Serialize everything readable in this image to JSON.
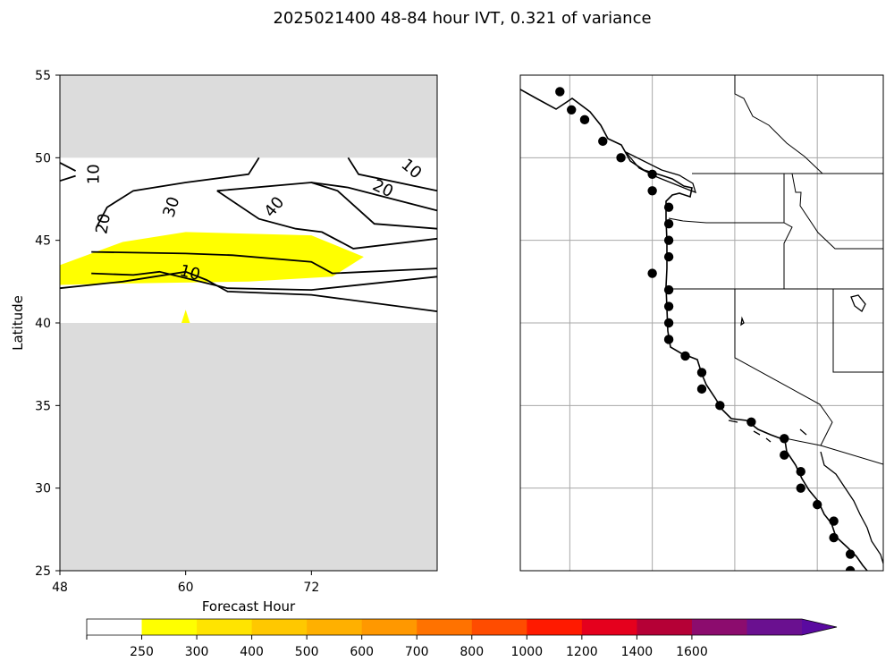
{
  "title": "2025021400 48-84 hour IVT, 0.321 of variance",
  "chart_data": [
    {
      "type": "contour",
      "xlabel": "Forecast Hour",
      "ylabel": "Latitude",
      "xlim": [
        48,
        84
      ],
      "ylim": [
        25,
        55
      ],
      "xticks": [
        "48",
        "60",
        "72"
      ],
      "yticks": [
        "25",
        "30",
        "35",
        "40",
        "45",
        "50",
        "55"
      ],
      "masked_regions": [
        {
          "lat_from": 50,
          "lat_to": 55
        },
        {
          "lat_from": 25,
          "lat_to": 40
        }
      ],
      "filled_region_250": [
        [
          54,
          44.9
        ],
        [
          60,
          45.5
        ],
        [
          72,
          45.3
        ],
        [
          77,
          44.0
        ],
        [
          74,
          42.8
        ],
        [
          66,
          42.5
        ],
        [
          55,
          42.4
        ],
        [
          48,
          42.3
        ],
        [
          48,
          43.5
        ]
      ],
      "filled_spike_250": [
        [
          59.6,
          40.0
        ],
        [
          60.0,
          40.8
        ],
        [
          60.4,
          40.0
        ]
      ],
      "contours": [
        {
          "level": "10",
          "points": [
            [
              48,
              48.6
            ],
            [
              49.5,
              48.9
            ]
          ],
          "label": {
            "x": 51.3,
            "y": 49.0
          }
        },
        {
          "level": "10",
          "points": [
            [
              48,
              49.7
            ],
            [
              49.5,
              49.2
            ]
          ],
          "label": null
        },
        {
          "level": "20",
          "points": [
            [
              51.5,
              45.8
            ],
            [
              52.5,
              47.0
            ],
            [
              55,
              48.0
            ],
            [
              60,
              48.5
            ],
            [
              66,
              49.0
            ],
            [
              67,
              50.0
            ]
          ],
          "label": {
            "x": 52.2,
            "y": 46.0
          }
        },
        {
          "level": "10",
          "points": [
            [
              75.5,
              50.0
            ],
            [
              76.5,
              49.0
            ],
            [
              84,
              48.0
            ]
          ],
          "label": {
            "x": 81.5,
            "y": 49.3
          }
        },
        {
          "level": "20",
          "points": [
            [
              63,
              48.0
            ],
            [
              72,
              48.5
            ],
            [
              75.5,
              48.2
            ],
            [
              84,
              46.8
            ]
          ],
          "label": {
            "x": 78.8,
            "y": 48.1
          }
        },
        {
          "level": "30",
          "points": [
            [
              51,
              43.0
            ],
            [
              55,
              42.9
            ],
            [
              57.5,
              43.1
            ],
            [
              64,
              42.1
            ],
            [
              72,
              42.0
            ],
            [
              84,
              42.8
            ]
          ],
          "label": {
            "x": 58.7,
            "y": 47.0
          }
        },
        {
          "level": "40",
          "points": [
            [
              51,
              44.3
            ],
            [
              60,
              44.2
            ],
            [
              64.5,
              44.1
            ],
            [
              72,
              43.7
            ],
            [
              74,
              43.0
            ],
            [
              84,
              43.3
            ]
          ],
          "label": {
            "x": 68.5,
            "y": 47.0
          }
        },
        {
          "level": "10",
          "points": [
            [
              48,
              42.1
            ],
            [
              54,
              42.5
            ],
            [
              60,
              43.1
            ],
            [
              62,
              42.6
            ],
            [
              64,
              41.9
            ],
            [
              72,
              41.7
            ],
            [
              84,
              40.7
            ]
          ],
          "label": {
            "x": 60.4,
            "y": 43.0
          }
        },
        {
          "level": "",
          "points": [
            [
              63,
              48.0
            ],
            [
              67,
              46.3
            ],
            [
              70.5,
              45.7
            ],
            [
              73,
              45.5
            ],
            [
              76,
              44.5
            ],
            [
              84,
              45.1
            ]
          ],
          "label": null
        },
        {
          "level": "",
          "points": [
            [
              72,
              48.5
            ],
            [
              74.5,
              48.0
            ],
            [
              78,
              46.0
            ],
            [
              84,
              45.7
            ]
          ],
          "label": null
        }
      ]
    },
    {
      "type": "map",
      "lon_range": [
        -135,
        -113
      ],
      "lat_range": [
        25,
        55
      ],
      "gridlines_lon": [
        -132,
        -127,
        -122,
        -117
      ],
      "gridlines_lat": [
        30,
        35,
        40,
        45,
        50
      ],
      "markers": [
        [
          -132.6,
          54.0
        ],
        [
          -131.9,
          52.9
        ],
        [
          -131.1,
          52.3
        ],
        [
          -130.0,
          51.0
        ],
        [
          -128.9,
          50.0
        ],
        [
          -127.0,
          49.0
        ],
        [
          -127.0,
          48.0
        ],
        [
          -126.0,
          47.0
        ],
        [
          -126.0,
          46.0
        ],
        [
          -126.0,
          45.0
        ],
        [
          -126.0,
          44.0
        ],
        [
          -127.0,
          43.0
        ],
        [
          -126.0,
          42.0
        ],
        [
          -126.0,
          41.0
        ],
        [
          -126.0,
          40.0
        ],
        [
          -126.0,
          39.0
        ],
        [
          -125.0,
          38.0
        ],
        [
          -124.0,
          37.0
        ],
        [
          -124.0,
          36.0
        ],
        [
          -122.9,
          35.0
        ],
        [
          -121.0,
          34.0
        ],
        [
          -119.0,
          33.0
        ],
        [
          -119.0,
          32.0
        ],
        [
          -118.0,
          31.0
        ],
        [
          -118.0,
          30.0
        ],
        [
          -117.0,
          29.0
        ],
        [
          -116.0,
          28.0
        ],
        [
          -116.0,
          27.0
        ],
        [
          -115.0,
          26.0
        ],
        [
          -115.0,
          25.0
        ]
      ]
    }
  ],
  "colorbar": {
    "ticks": [
      "250",
      "300",
      "400",
      "500",
      "600",
      "700",
      "800",
      "1000",
      "1200",
      "1400",
      "1600"
    ],
    "colors": [
      "#ffffff",
      "#ffff00",
      "#ffe400",
      "#ffc800",
      "#ffb000",
      "#ff9800",
      "#ff7200",
      "#ff4c00",
      "#ff1a00",
      "#e5001d",
      "#b50036",
      "#8c0c6e",
      "#6a1090",
      "#5a0aa0"
    ]
  }
}
